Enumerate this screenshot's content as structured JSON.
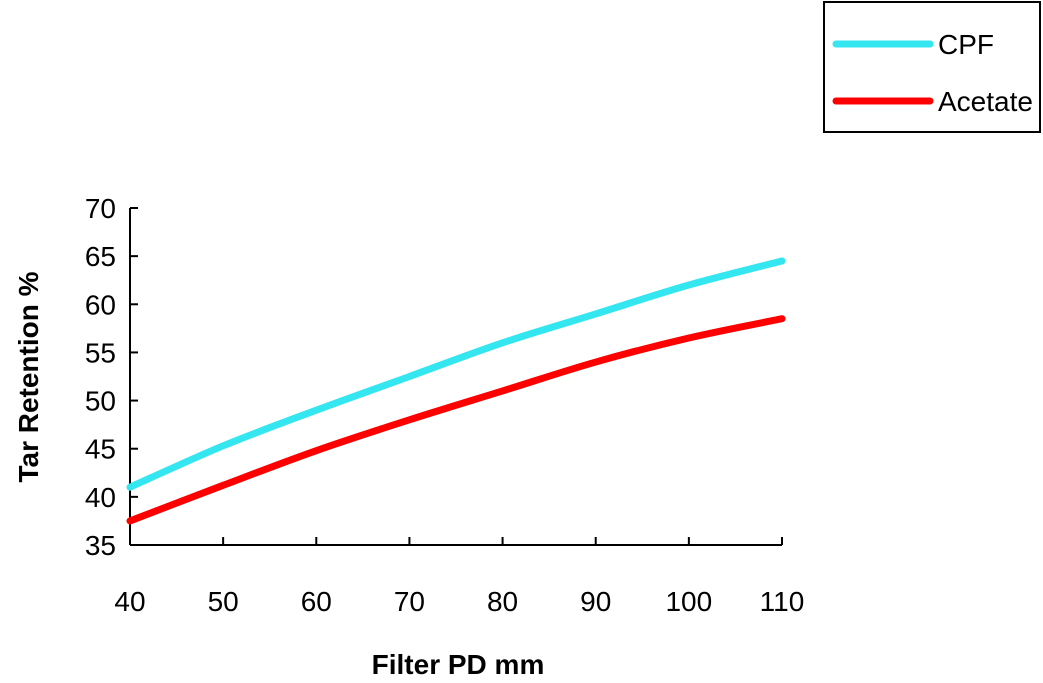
{
  "chart_data": {
    "type": "line",
    "title": "",
    "xlabel": "Filter PD mm",
    "ylabel": "Tar Retention %",
    "x": [
      40,
      50,
      60,
      70,
      80,
      90,
      100,
      110
    ],
    "xlim": [
      40,
      110
    ],
    "ylim": [
      35,
      70
    ],
    "xticks": [
      40,
      50,
      60,
      70,
      80,
      90,
      100,
      110
    ],
    "yticks": [
      35,
      40,
      45,
      50,
      55,
      60,
      65,
      70
    ],
    "grid": false,
    "legend_position": "top-right",
    "series": [
      {
        "name": "CPF",
        "color": "#33e6f0",
        "values": [
          41,
          45.3,
          49,
          52.5,
          56,
          59,
          62,
          64.5
        ]
      },
      {
        "name": "Acetate",
        "color": "#ff0000",
        "values": [
          37.5,
          41.2,
          44.8,
          48,
          51,
          54,
          56.5,
          58.5
        ]
      }
    ]
  }
}
